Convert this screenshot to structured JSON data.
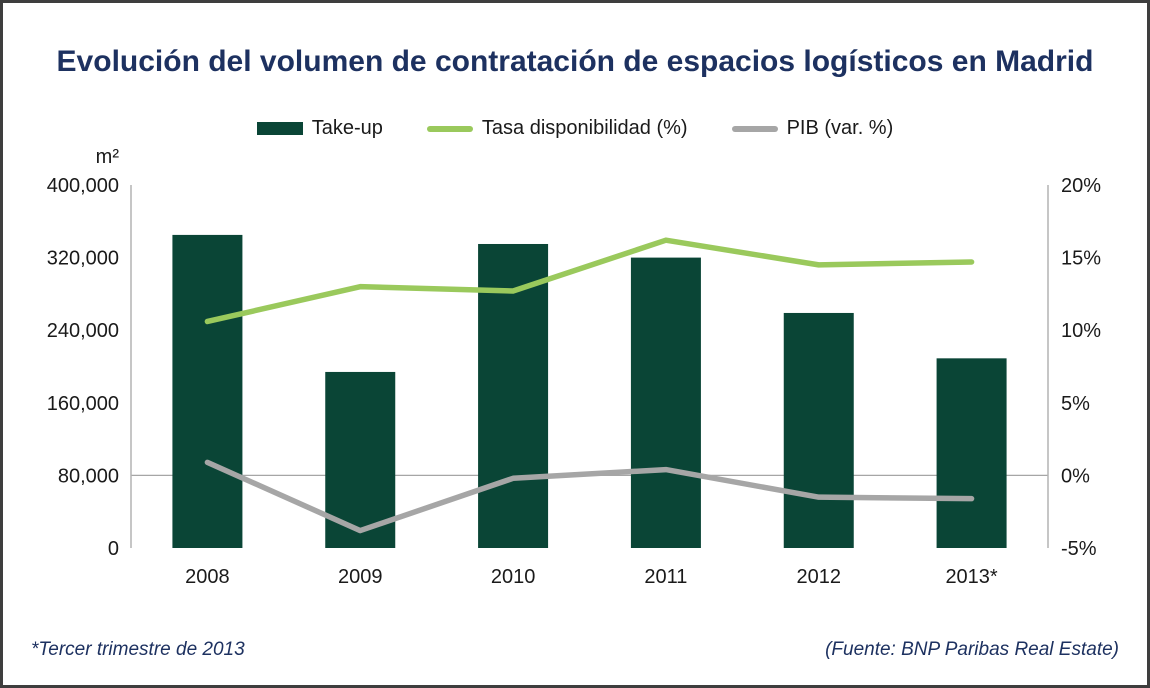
{
  "title": {
    "text": "Evolución del volumen de contratación de espacios logísticos en Madrid",
    "color": "#1d3160"
  },
  "legend": {
    "items": [
      {
        "label": "Take-up",
        "swatch": "bar",
        "color": "#0a4536"
      },
      {
        "label": "Tasa disponibilidad (%)",
        "swatch": "line",
        "color": "#9ac95c"
      },
      {
        "label": "PIB (var. %)",
        "swatch": "line",
        "color": "#a6a6a6"
      }
    ]
  },
  "footnotes": {
    "left": "*Tercer trimestre de 2013",
    "right": "(Fuente: BNP Paribas Real Estate)",
    "color": "#1d3160"
  },
  "chart_data": {
    "type": "bar",
    "subtype": "combo-bar-line-dual-axis",
    "categories": [
      "2008",
      "2009",
      "2010",
      "2011",
      "2012",
      "2013*"
    ],
    "series": [
      {
        "name": "Take-up",
        "type": "bar",
        "axis": "left",
        "color": "#0a4536",
        "values": [
          345000,
          194000,
          335000,
          320000,
          259000,
          209000
        ]
      },
      {
        "name": "Tasa disponibilidad (%)",
        "type": "line",
        "axis": "right",
        "color": "#9ac95c",
        "values": [
          10.6,
          13.0,
          12.7,
          16.2,
          14.5,
          14.7
        ]
      },
      {
        "name": "PIB (var. %)",
        "type": "line",
        "axis": "right",
        "color": "#a6a6a6",
        "values": [
          0.9,
          -3.8,
          -0.2,
          0.4,
          -1.5,
          -1.6
        ]
      }
    ],
    "left_axis": {
      "unit": "m²",
      "min": 0,
      "max": 400000,
      "tick_step": 80000,
      "tick_labels_top_to_bottom": [
        "400,000",
        "320,000",
        "240,000",
        "160,000",
        "80,000",
        "0"
      ]
    },
    "right_axis": {
      "min": -5,
      "max": 20,
      "tick_step": 5,
      "tick_labels_top_to_bottom": [
        "20%",
        "15%",
        "10%",
        "5%",
        "0%",
        "-5%"
      ]
    },
    "grid": {
      "zero_gridline_right_axis_value": 0,
      "other_gridlines": "off"
    },
    "legend_position": "top",
    "axis_text_color": "#1a1a1a",
    "axis_line_color": "#b3b3b3",
    "gridline_color": "#a6a6a6"
  }
}
